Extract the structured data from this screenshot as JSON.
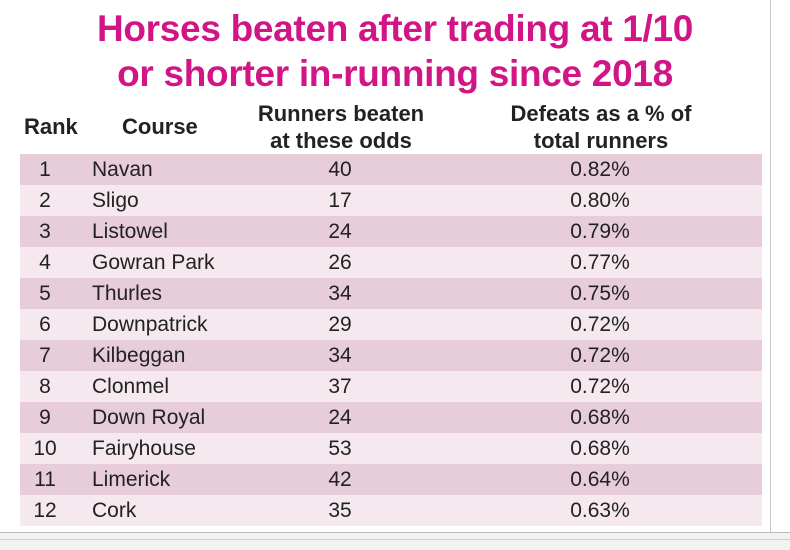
{
  "title_line1": "Horses beaten after trading at 1/10",
  "title_line2": "or shorter in-running since 2018",
  "headers": {
    "rank": "Rank",
    "course": "Course",
    "runners_line1": "Runners beaten",
    "runners_line2": "at these odds",
    "defeats_line1": "Defeats as a % of",
    "defeats_line2": "total runners"
  },
  "colors": {
    "title": "#d11587",
    "row_dark": "#e6cdd9",
    "row_light": "#f5e9ef"
  },
  "chart_data": {
    "type": "table",
    "title": "Horses beaten after trading at 1/10 or shorter in-running since 2018",
    "columns": [
      "Rank",
      "Course",
      "Runners beaten at these odds",
      "Defeats as a % of total runners"
    ],
    "rows": [
      {
        "rank": "1",
        "course": "Navan",
        "runners": "40",
        "defeats": "0.82%"
      },
      {
        "rank": "2",
        "course": "Sligo",
        "runners": "17",
        "defeats": "0.80%"
      },
      {
        "rank": "3",
        "course": "Listowel",
        "runners": "24",
        "defeats": "0.79%"
      },
      {
        "rank": "4",
        "course": "Gowran Park",
        "runners": "26",
        "defeats": "0.77%"
      },
      {
        "rank": "5",
        "course": "Thurles",
        "runners": "34",
        "defeats": "0.75%"
      },
      {
        "rank": "6",
        "course": "Downpatrick",
        "runners": "29",
        "defeats": "0.72%"
      },
      {
        "rank": "7",
        "course": "Kilbeggan",
        "runners": "34",
        "defeats": "0.72%"
      },
      {
        "rank": "8",
        "course": "Clonmel",
        "runners": "37",
        "defeats": "0.72%"
      },
      {
        "rank": "9",
        "course": "Down Royal",
        "runners": "24",
        "defeats": "0.68%"
      },
      {
        "rank": "10",
        "course": "Fairyhouse",
        "runners": "53",
        "defeats": "0.68%"
      },
      {
        "rank": "11",
        "course": "Limerick",
        "runners": "42",
        "defeats": "0.64%"
      },
      {
        "rank": "12",
        "course": "Cork",
        "runners": "35",
        "defeats": "0.63%"
      }
    ]
  }
}
